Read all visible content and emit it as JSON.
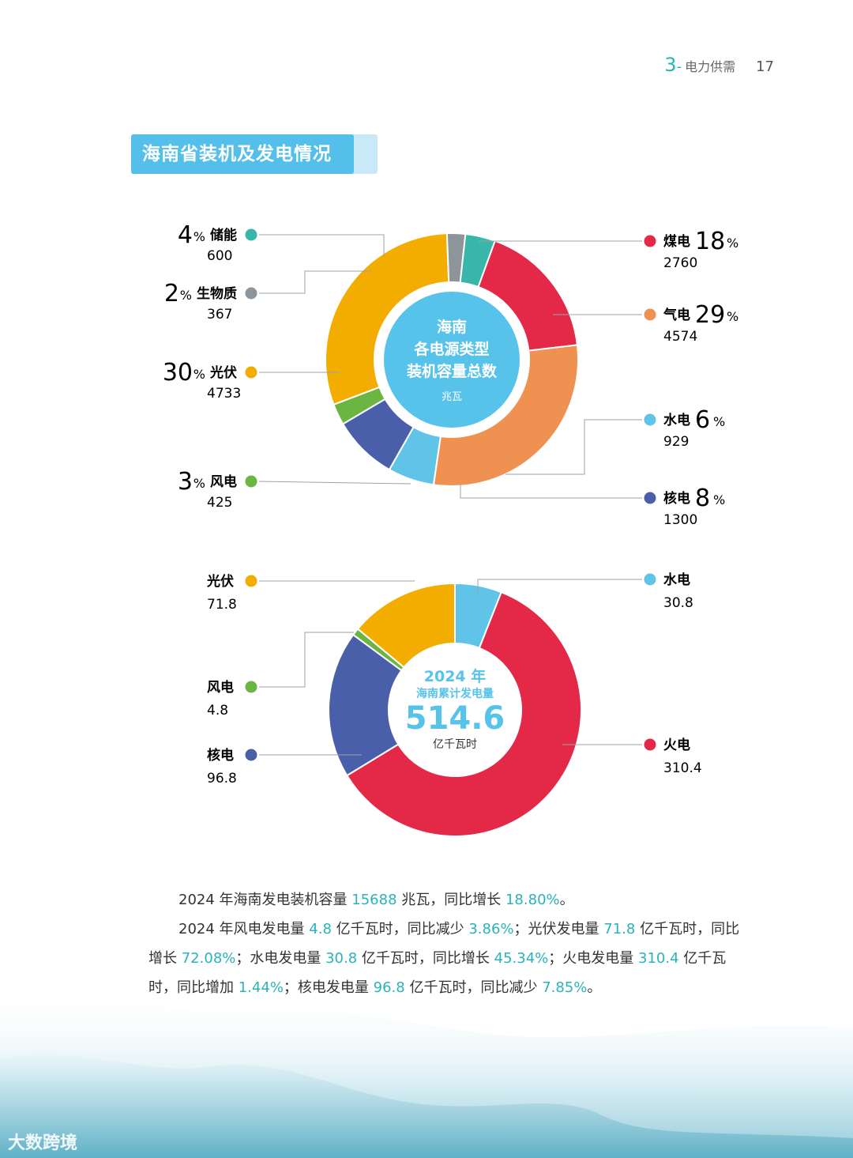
{
  "header": {
    "section_number": "3",
    "section_sep": "-",
    "section_title": "电力供需",
    "page_number": "17"
  },
  "page_title": "海南省装机及发电情况",
  "colors": {
    "coal": "#e32848",
    "gas": "#ef9150",
    "hydro": "#5fc4e8",
    "nuclear": "#4a5fa9",
    "wind": "#6bb643",
    "solar": "#f2ad00",
    "biomass": "#8d949a",
    "storage": "#38b6aa",
    "thermal": "#e32848",
    "center": "#57c2ea",
    "accent": "#2bb3b8",
    "pct": "#e4468f"
  },
  "chart_data": [
    {
      "type": "pie",
      "title": "海南各电源类型装机容量总数",
      "center_lines": [
        "海南",
        "各电源类型",
        "装机容量总数"
      ],
      "unit": "兆瓦",
      "pct_sign": "%",
      "categories": [
        "煤电",
        "气电",
        "水电",
        "核电",
        "风电",
        "光伏",
        "生物质",
        "储能"
      ],
      "values": [
        2760,
        4574,
        929,
        1300,
        425,
        4733,
        367,
        600
      ],
      "percents": [
        18,
        29,
        6,
        8,
        3,
        30,
        2,
        4
      ],
      "series_colors": [
        "#e32848",
        "#ef9150",
        "#5fc4e8",
        "#4a5fa9",
        "#6bb643",
        "#f2ad00",
        "#8d949a",
        "#38b6aa"
      ]
    },
    {
      "type": "pie",
      "title": "2024 年海南累计发电量",
      "center_year": "2024 年",
      "center_label": "海南累计发电量",
      "total": "514.6",
      "unit": "亿千瓦时",
      "categories": [
        "水电",
        "火电",
        "核电",
        "风电",
        "光伏"
      ],
      "values": [
        30.8,
        310.4,
        96.8,
        4.8,
        71.8
      ],
      "value_labels": [
        "30.8",
        "310.4",
        "96.8",
        "4.8",
        "71.8"
      ],
      "series_colors": [
        "#5fc4e8",
        "#e32848",
        "#4a5fa9",
        "#6bb643",
        "#f2ad00"
      ]
    }
  ],
  "summary": {
    "p1": [
      "2024 年海南发电装机容量 ",
      "15688",
      " 兆瓦，同比增长 ",
      "18.80%",
      "。"
    ],
    "p2": [
      "2024 年风电发电量 ",
      "4.8",
      " 亿千瓦时，同比减少 ",
      "3.86%",
      "；光伏发电量 ",
      "71.8",
      " 亿千瓦时，同比增长 ",
      "72.08%",
      "；水电发电量 ",
      "30.8",
      " 亿千瓦时，同比增长 ",
      "45.34%",
      "；火电发电量 ",
      "310.4",
      " 亿千瓦时，同比增加 ",
      "1.44%",
      "；核电发电量 ",
      "96.8",
      " 亿千瓦时，同比减少 ",
      "7.85%",
      "。"
    ]
  },
  "watermark": "大数跨境"
}
